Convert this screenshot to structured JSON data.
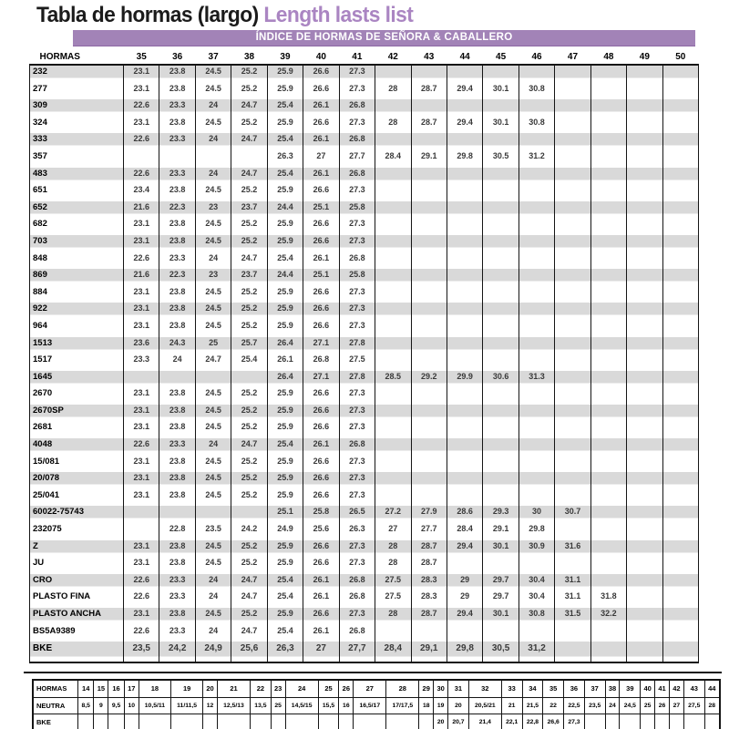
{
  "title": {
    "main": "Tabla de hormas (largo)",
    "sub": "Length lasts list"
  },
  "banner": "ÍNDICE DE HORMAS DE SEÑORA & CABALLERO",
  "colors": {
    "banner_purple": "#a283b7",
    "subtitle_purple": "#aa85c2",
    "stripe_gray": "#d9d9d9",
    "line_black": "#151515"
  },
  "main_table": {
    "label_header": "HORMAS",
    "size_columns": [
      "35",
      "36",
      "37",
      "38",
      "39",
      "40",
      "41",
      "42",
      "43",
      "44",
      "45",
      "46",
      "47",
      "48",
      "49",
      "50"
    ],
    "rows": [
      {
        "label": "232",
        "values": [
          "23.1",
          "23.8",
          "24.5",
          "25.2",
          "25.9",
          "26.6",
          "27.3"
        ]
      },
      {
        "label": "277",
        "values": [
          "23.1",
          "23.8",
          "24.5",
          "25.2",
          "25.9",
          "26.6",
          "27.3",
          "28",
          "28.7",
          "29.4",
          "30.1",
          "30.8"
        ]
      },
      {
        "label": "309",
        "values": [
          "22.6",
          "23.3",
          "24",
          "24.7",
          "25.4",
          "26.1",
          "26.8"
        ]
      },
      {
        "label": "324",
        "values": [
          "23.1",
          "23.8",
          "24.5",
          "25.2",
          "25.9",
          "26.6",
          "27.3",
          "28",
          "28.7",
          "29.4",
          "30.1",
          "30.8"
        ]
      },
      {
        "label": "333",
        "values": [
          "22.6",
          "23.3",
          "24",
          "24.7",
          "25.4",
          "26.1",
          "26.8"
        ]
      },
      {
        "label": "357",
        "values": [
          "",
          "",
          "",
          "",
          "26.3",
          "27",
          "27.7",
          "28.4",
          "29.1",
          "29.8",
          "30.5",
          "31.2"
        ]
      },
      {
        "label": "483",
        "values": [
          "22.6",
          "23.3",
          "24",
          "24.7",
          "25.4",
          "26.1",
          "26.8"
        ]
      },
      {
        "label": "651",
        "values": [
          "23.4",
          "23.8",
          "24.5",
          "25.2",
          "25.9",
          "26.6",
          "27.3"
        ]
      },
      {
        "label": "652",
        "values": [
          "21.6",
          "22.3",
          "23",
          "23.7",
          "24.4",
          "25.1",
          "25.8"
        ]
      },
      {
        "label": "682",
        "values": [
          "23.1",
          "23.8",
          "24.5",
          "25.2",
          "25.9",
          "26.6",
          "27.3"
        ]
      },
      {
        "label": "703",
        "values": [
          "23.1",
          "23.8",
          "24.5",
          "25.2",
          "25.9",
          "26.6",
          "27.3"
        ]
      },
      {
        "label": "848",
        "values": [
          "22.6",
          "23.3",
          "24",
          "24.7",
          "25.4",
          "26.1",
          "26.8"
        ]
      },
      {
        "label": "869",
        "values": [
          "21.6",
          "22.3",
          "23",
          "23.7",
          "24.4",
          "25.1",
          "25.8"
        ]
      },
      {
        "label": "884",
        "values": [
          "23.1",
          "23.8",
          "24.5",
          "25.2",
          "25.9",
          "26.6",
          "27.3"
        ]
      },
      {
        "label": "922",
        "values": [
          "23.1",
          "23.8",
          "24.5",
          "25.2",
          "25.9",
          "26.6",
          "27.3"
        ]
      },
      {
        "label": "964",
        "values": [
          "23.1",
          "23.8",
          "24.5",
          "25.2",
          "25.9",
          "26.6",
          "27.3"
        ]
      },
      {
        "label": "1513",
        "values": [
          "23.6",
          "24.3",
          "25",
          "25.7",
          "26.4",
          "27.1",
          "27.8"
        ]
      },
      {
        "label": "1517",
        "values": [
          "23.3",
          "24",
          "24.7",
          "25.4",
          "26.1",
          "26.8",
          "27.5"
        ]
      },
      {
        "label": "1645",
        "values": [
          "",
          "",
          "",
          "",
          "26.4",
          "27.1",
          "27.8",
          "28.5",
          "29.2",
          "29.9",
          "30.6",
          "31.3"
        ]
      },
      {
        "label": "2670",
        "values": [
          "23.1",
          "23.8",
          "24.5",
          "25.2",
          "25.9",
          "26.6",
          "27.3"
        ]
      },
      {
        "label": "2670SP",
        "values": [
          "23.1",
          "23.8",
          "24.5",
          "25.2",
          "25.9",
          "26.6",
          "27.3"
        ]
      },
      {
        "label": "2681",
        "values": [
          "23.1",
          "23.8",
          "24.5",
          "25.2",
          "25.9",
          "26.6",
          "27.3"
        ]
      },
      {
        "label": "4048",
        "values": [
          "22.6",
          "23.3",
          "24",
          "24.7",
          "25.4",
          "26.1",
          "26.8"
        ]
      },
      {
        "label": "15/081",
        "values": [
          "23.1",
          "23.8",
          "24.5",
          "25.2",
          "25.9",
          "26.6",
          "27.3"
        ]
      },
      {
        "label": "20/078",
        "values": [
          "23.1",
          "23.8",
          "24.5",
          "25.2",
          "25.9",
          "26.6",
          "27.3"
        ]
      },
      {
        "label": "25/041",
        "values": [
          "23.1",
          "23.8",
          "24.5",
          "25.2",
          "25.9",
          "26.6",
          "27.3"
        ]
      },
      {
        "label": "60022-75743",
        "values": [
          "",
          "",
          "",
          "",
          "25.1",
          "25.8",
          "26.5",
          "27.2",
          "27.9",
          "28.6",
          "29.3",
          "30",
          "30.7"
        ]
      },
      {
        "label": "232075",
        "values": [
          "",
          "22.8",
          "23.5",
          "24.2",
          "24.9",
          "25.6",
          "26.3",
          "27",
          "27.7",
          "28.4",
          "29.1",
          "29.8"
        ]
      },
      {
        "label": "Z",
        "values": [
          "23.1",
          "23.8",
          "24.5",
          "25.2",
          "25.9",
          "26.6",
          "27.3",
          "28",
          "28.7",
          "29.4",
          "30.1",
          "30.9",
          "31.6"
        ]
      },
      {
        "label": "JU",
        "values": [
          "23.1",
          "23.8",
          "24.5",
          "25.2",
          "25.9",
          "26.6",
          "27.3",
          "28",
          "28.7"
        ]
      },
      {
        "label": "CRO",
        "values": [
          "22.6",
          "23.3",
          "24",
          "24.7",
          "25.4",
          "26.1",
          "26.8",
          "27.5",
          "28.3",
          "29",
          "29.7",
          "30.4",
          "31.1"
        ]
      },
      {
        "label": "PLASTO FINA",
        "values": [
          "22.6",
          "23.3",
          "24",
          "24.7",
          "25.4",
          "26.1",
          "26.8",
          "27.5",
          "28.3",
          "29",
          "29.7",
          "30.4",
          "31.1",
          "31.8"
        ]
      },
      {
        "label": "PLASTO ANCHA",
        "values": [
          "23.1",
          "23.8",
          "24.5",
          "25.2",
          "25.9",
          "26.6",
          "27.3",
          "28",
          "28.7",
          "29.4",
          "30.1",
          "30.8",
          "31.5",
          "32.2"
        ]
      },
      {
        "label": "BS5A9389",
        "values": [
          "22.6",
          "23.3",
          "24",
          "24.7",
          "25.4",
          "26.1",
          "26.8"
        ]
      },
      {
        "label": "BKE",
        "values": [
          "23,5",
          "24,2",
          "24,9",
          "25,6",
          "26,3",
          "27",
          "27,7",
          "28,4",
          "29,1",
          "29,8",
          "30,5",
          "31,2"
        ]
      }
    ]
  },
  "bottom_table": {
    "rows": [
      {
        "label": "HORMAS",
        "header": true,
        "values": [
          "14",
          "15",
          "16",
          "17",
          "18",
          "19",
          "20",
          "21",
          "22",
          "23",
          "24",
          "25",
          "26",
          "27",
          "28",
          "29",
          "30",
          "31",
          "32",
          "33",
          "34",
          "35",
          "36",
          "37",
          "38",
          "39",
          "40",
          "41",
          "42",
          "43",
          "44"
        ]
      },
      {
        "label": "NEUTRA",
        "header": false,
        "values": [
          "8,5",
          "9",
          "9,5",
          "10",
          "10,5/11",
          "11/11,5",
          "12",
          "12,5/13",
          "13,5",
          "25",
          "14,5/15",
          "15,5",
          "16",
          "16,5/17",
          "17/17,5",
          "18",
          "19",
          "20",
          "20,5/21",
          "21",
          "21,5",
          "22",
          "22,5",
          "23,5",
          "24",
          "24,5",
          "25",
          "26",
          "27",
          "27,5",
          "28"
        ]
      },
      {
        "label": "BKE",
        "header": false,
        "values": [
          "",
          "",
          "",
          "",
          "",
          "",
          "",
          "",
          "",
          "",
          "",
          "",
          "",
          "",
          "",
          "",
          "20",
          "20,7",
          "21,4",
          "22,1",
          "22,8",
          "26,6",
          "27,3",
          "",
          "",
          "",
          "",
          "",
          "",
          "",
          ""
        ]
      }
    ]
  }
}
